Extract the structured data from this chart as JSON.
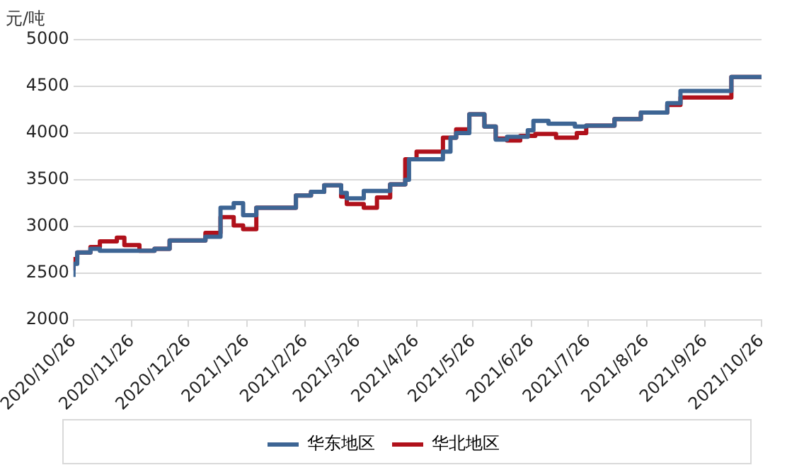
{
  "chart_data": {
    "type": "step",
    "ylabel": "元/吨",
    "ylim": [
      2000,
      5000
    ],
    "yticks": [
      2000,
      2500,
      3000,
      3500,
      4000,
      4500,
      5000
    ],
    "xlim": [
      "2020-10-26",
      "2021-10-26"
    ],
    "xticks": [
      {
        "value": "2020-10-26",
        "label": "2020/10/26"
      },
      {
        "value": "2020-11-26",
        "label": "2020/11/26"
      },
      {
        "value": "2020-12-26",
        "label": "2020/12/26"
      },
      {
        "value": "2021-01-26",
        "label": "2021/1/26"
      },
      {
        "value": "2021-02-26",
        "label": "2021/2/26"
      },
      {
        "value": "2021-03-26",
        "label": "2021/3/26"
      },
      {
        "value": "2021-04-26",
        "label": "2021/4/26"
      },
      {
        "value": "2021-05-26",
        "label": "2021/5/26"
      },
      {
        "value": "2021-06-26",
        "label": "2021/6/26"
      },
      {
        "value": "2021-07-26",
        "label": "2021/7/26"
      },
      {
        "value": "2021-08-26",
        "label": "2021/8/26"
      },
      {
        "value": "2021-09-26",
        "label": "2021/9/26"
      },
      {
        "value": "2021-10-26",
        "label": "2021/10/26"
      }
    ],
    "grid": "y",
    "legend": "bottom",
    "series": [
      {
        "name": "华东地区",
        "color": "#3d6594",
        "x": [
          "2020-10-26",
          "2020-10-28",
          "2020-11-04",
          "2020-11-09",
          "2020-12-08",
          "2020-12-16",
          "2021-01-04",
          "2021-01-12",
          "2021-01-19",
          "2021-01-24",
          "2021-01-31",
          "2021-02-21",
          "2021-03-01",
          "2021-03-08",
          "2021-03-17",
          "2021-03-20",
          "2021-03-29",
          "2021-04-12",
          "2021-04-20",
          "2021-04-22",
          "2021-05-10",
          "2021-05-14",
          "2021-05-17",
          "2021-05-24",
          "2021-06-01",
          "2021-06-07",
          "2021-06-13",
          "2021-06-24",
          "2021-06-27",
          "2021-07-05",
          "2021-07-19",
          "2021-07-25",
          "2021-08-09",
          "2021-08-23",
          "2021-09-06",
          "2021-09-13",
          "2021-10-10",
          "2021-10-18",
          "2021-10-26"
        ],
        "values": [
          2460,
          2600,
          2720,
          2760,
          2740,
          2760,
          2850,
          2890,
          3200,
          3250,
          3120,
          3200,
          3330,
          3370,
          3440,
          3360,
          3300,
          3380,
          3450,
          3500,
          3720,
          3800,
          3950,
          4000,
          4200,
          4070,
          3930,
          3960,
          4030,
          4130,
          4100,
          4070,
          4080,
          4150,
          4220,
          4320,
          4450,
          4600,
          4600
        ]
      },
      {
        "name": "华北地区",
        "color": "#b0111b",
        "x": [
          "2020-10-26",
          "2020-10-28",
          "2020-11-04",
          "2020-11-09",
          "2020-11-18",
          "2020-11-22",
          "2020-11-30",
          "2020-12-08",
          "2020-12-16",
          "2021-01-04",
          "2021-01-12",
          "2021-01-19",
          "2021-01-24",
          "2021-01-31",
          "2021-02-21",
          "2021-03-01",
          "2021-03-08",
          "2021-03-17",
          "2021-03-20",
          "2021-03-29",
          "2021-04-05",
          "2021-04-12",
          "2021-04-20",
          "2021-04-26",
          "2021-05-10",
          "2021-05-17",
          "2021-05-24",
          "2021-06-01",
          "2021-06-07",
          "2021-06-13",
          "2021-06-20",
          "2021-06-28",
          "2021-07-09",
          "2021-07-20",
          "2021-07-25",
          "2021-08-09",
          "2021-08-23",
          "2021-09-06",
          "2021-09-13",
          "2021-10-10",
          "2021-10-18",
          "2021-10-26"
        ],
        "values": [
          2530,
          2650,
          2720,
          2780,
          2840,
          2880,
          2800,
          2740,
          2760,
          2850,
          2930,
          3100,
          3010,
          2970,
          3200,
          3330,
          3370,
          3440,
          3320,
          3240,
          3200,
          3310,
          3450,
          3720,
          3800,
          3950,
          4040,
          4200,
          4070,
          3940,
          3920,
          3970,
          3990,
          3950,
          4000,
          4080,
          4150,
          4220,
          4300,
          4380,
          4600,
          4600
        ]
      }
    ]
  }
}
